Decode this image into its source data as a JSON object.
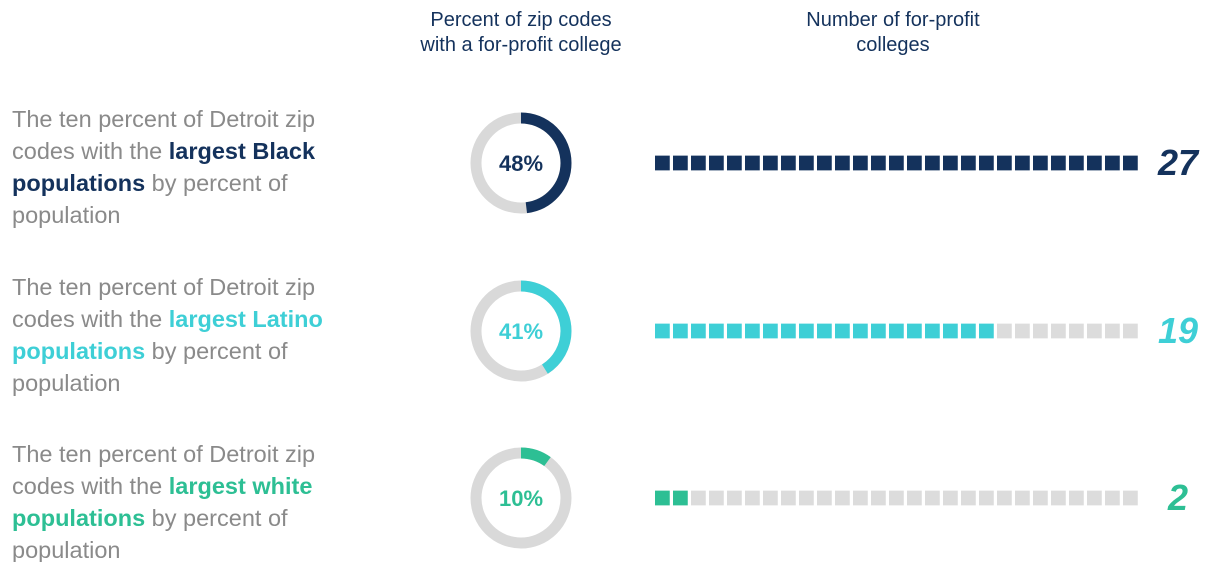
{
  "headers": [
    {
      "lines": [
        "Percent of zip codes",
        "with a for-profit college"
      ]
    },
    {
      "lines": [
        "Number of for-profit",
        "colleges"
      ]
    }
  ],
  "rows": [
    {
      "label": [
        "The ten percent of Detroit zip codes with the ",
        "largest Black populations",
        " by percent of population"
      ],
      "percent": 48,
      "percent_label": "48%",
      "count": 27,
      "color": "#14325c"
    },
    {
      "label": [
        "The ten percent of Detroit zip codes with the ",
        "largest Latino populations",
        " by percent of population"
      ],
      "percent": 41,
      "percent_label": "41%",
      "count": 19,
      "color": "#3ecfd6"
    },
    {
      "label": [
        "The ten percent of Detroit zip codes with the ",
        "largest white populations",
        " by percent of population"
      ],
      "percent": 10,
      "percent_label": "10%",
      "count": 2,
      "color": "#2dbf94"
    }
  ]
}
